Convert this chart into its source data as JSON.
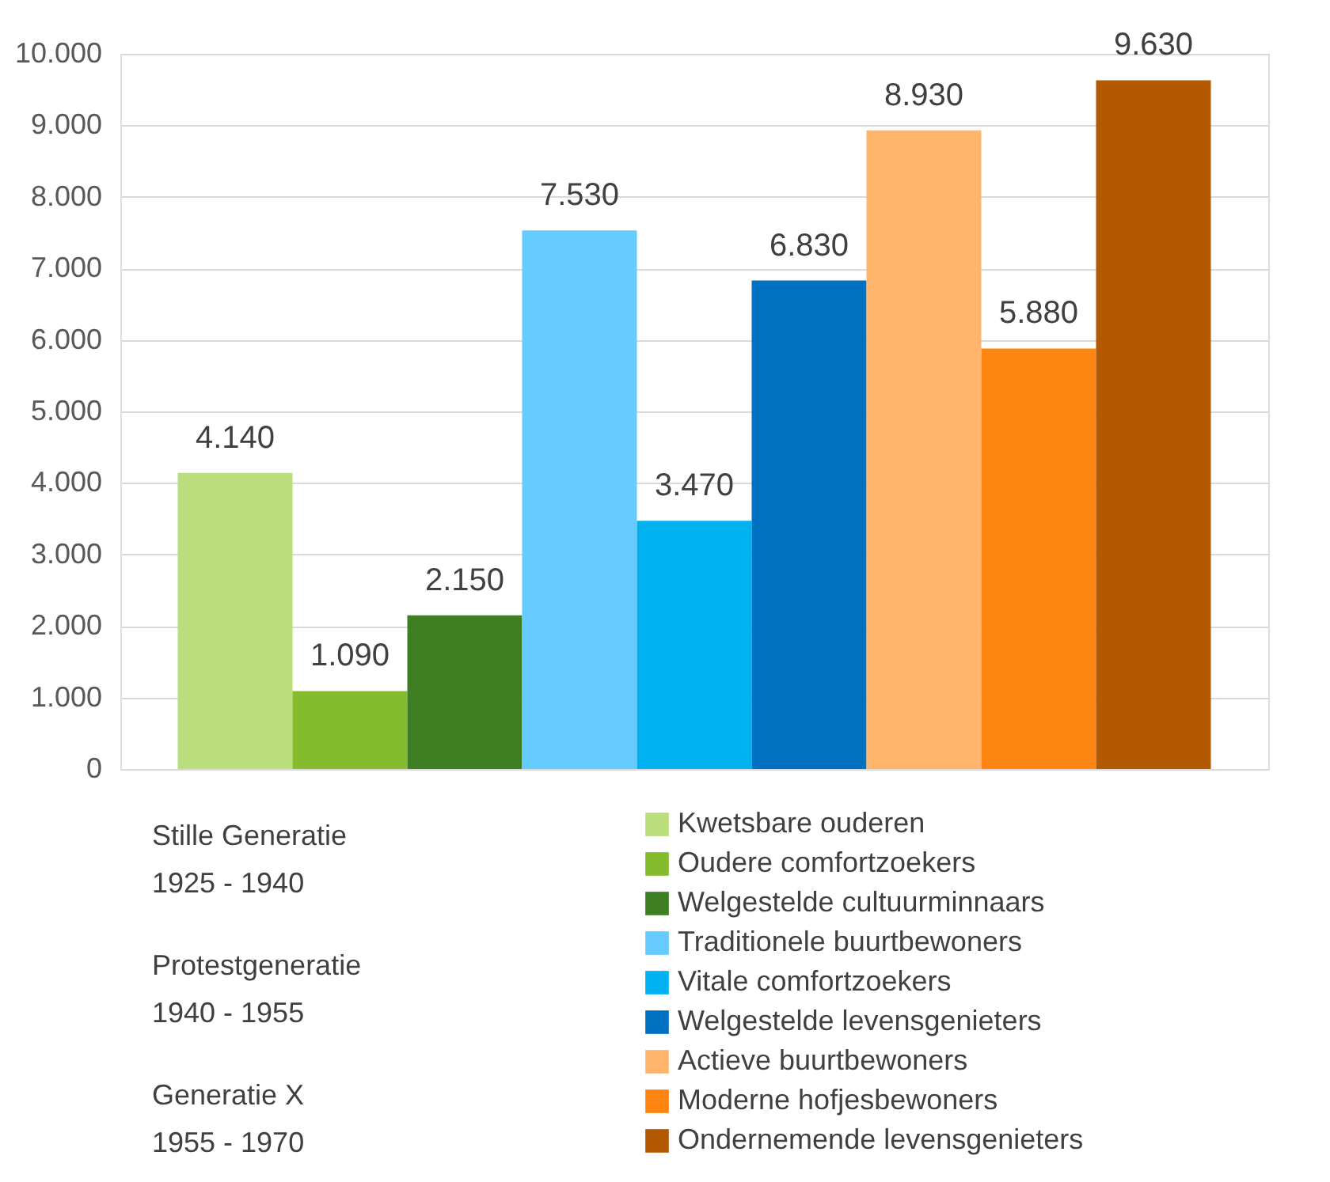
{
  "chart_data": {
    "type": "bar",
    "categories": [
      null
    ],
    "series": [
      {
        "name": "Kwetsbare ouderen",
        "color": "#bade7c",
        "values": [
          4140
        ],
        "value_labels": [
          "4.140"
        ]
      },
      {
        "name": "Oudere comfortzoekers",
        "color": "#84bc2e",
        "values": [
          1090
        ],
        "value_labels": [
          "1.090"
        ]
      },
      {
        "name": "Welgestelde cultuurminnaars",
        "color": "#3e7f24",
        "values": [
          2150
        ],
        "value_labels": [
          "2.150"
        ]
      },
      {
        "name": "Traditionele buurtbewoners",
        "color": "#66ccff",
        "values": [
          7530
        ],
        "value_labels": [
          "7.530"
        ]
      },
      {
        "name": "Vitale comfortzoekers",
        "color": "#00b0ef",
        "values": [
          3470
        ],
        "value_labels": [
          "3.470"
        ]
      },
      {
        "name": "Welgestelde levensgenieters",
        "color": "#0070c0",
        "values": [
          6830
        ],
        "value_labels": [
          "6.830"
        ]
      },
      {
        "name": "Actieve buurtbewoners",
        "color": "#ffb56b",
        "values": [
          8930
        ],
        "value_labels": [
          "8.930"
        ]
      },
      {
        "name": "Moderne hofjesbewoners",
        "color": "#ff8512",
        "values": [
          5880
        ],
        "value_labels": [
          "5.880"
        ]
      },
      {
        "name": "Ondernemende levensgenieters",
        "color": "#b35900",
        "values": [
          9630
        ],
        "value_labels": [
          "9.630"
        ]
      }
    ],
    "ylim": [
      0,
      10000
    ],
    "yticks": [
      {
        "value": 0,
        "label": "0"
      },
      {
        "value": 1000,
        "label": "1.000"
      },
      {
        "value": 2000,
        "label": "2.000"
      },
      {
        "value": 3000,
        "label": "3.000"
      },
      {
        "value": 4000,
        "label": "4.000"
      },
      {
        "value": 5000,
        "label": "5.000"
      },
      {
        "value": 6000,
        "label": "6.000"
      },
      {
        "value": 7000,
        "label": "7.000"
      },
      {
        "value": 8000,
        "label": "8.000"
      },
      {
        "value": 9000,
        "label": "9.000"
      },
      {
        "value": 10000,
        "label": "10.000"
      }
    ],
    "grid": "y",
    "legend": "bottom",
    "annotations": [
      "Stille Generatie\n1925 - 1940",
      "Protestgeneratie\n1940 - 1955",
      "Generatie X\n1955 - 1970"
    ]
  }
}
